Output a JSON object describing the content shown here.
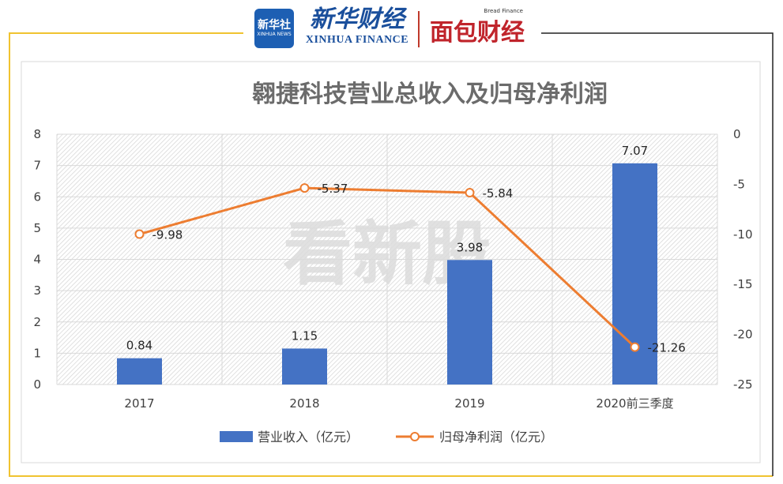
{
  "header": {
    "logo_badge_cn": "新华社",
    "logo_badge_en": "XINHUA NEWS",
    "logo_left_cn": "新华财经",
    "logo_left_en": "XINHUA FINANCE",
    "logo_right_cn": "面包财经",
    "logo_right_en": "Bread Finance"
  },
  "watermark": "看新股",
  "colors": {
    "bar": "#4472c4",
    "line": "#ed7d31",
    "frame_yellow": "#f0c330",
    "frame_black": "#222222",
    "title": "#6b6b6b",
    "axis_text": "#404040"
  },
  "chart_data": {
    "type": "bar",
    "title": "翱捷科技营业总收入及归母净利润",
    "categories": [
      "2017",
      "2018",
      "2019",
      "2020前三季度"
    ],
    "series": [
      {
        "name": "营业收入（亿元）",
        "type": "bar",
        "axis": "left",
        "values": [
          0.84,
          1.15,
          3.98,
          7.07
        ],
        "labels": [
          "0.84",
          "1.15",
          "3.98",
          "7.07"
        ]
      },
      {
        "name": "归母净利润（亿元）",
        "type": "line",
        "axis": "right",
        "values": [
          -9.98,
          -5.37,
          -5.84,
          -21.26
        ],
        "labels": [
          "-9.98",
          "-5.37",
          "-5.84",
          "-21.26"
        ]
      }
    ],
    "y_left": {
      "ylim": [
        0,
        8
      ],
      "ticks": [
        "0",
        "1",
        "2",
        "3",
        "4",
        "5",
        "6",
        "7",
        "8"
      ]
    },
    "y_right": {
      "ylim": [
        -25,
        0
      ],
      "ticks": [
        "0",
        "-5",
        "-10",
        "-15",
        "-20",
        "-25"
      ]
    },
    "grid": true,
    "legend_position": "bottom"
  }
}
